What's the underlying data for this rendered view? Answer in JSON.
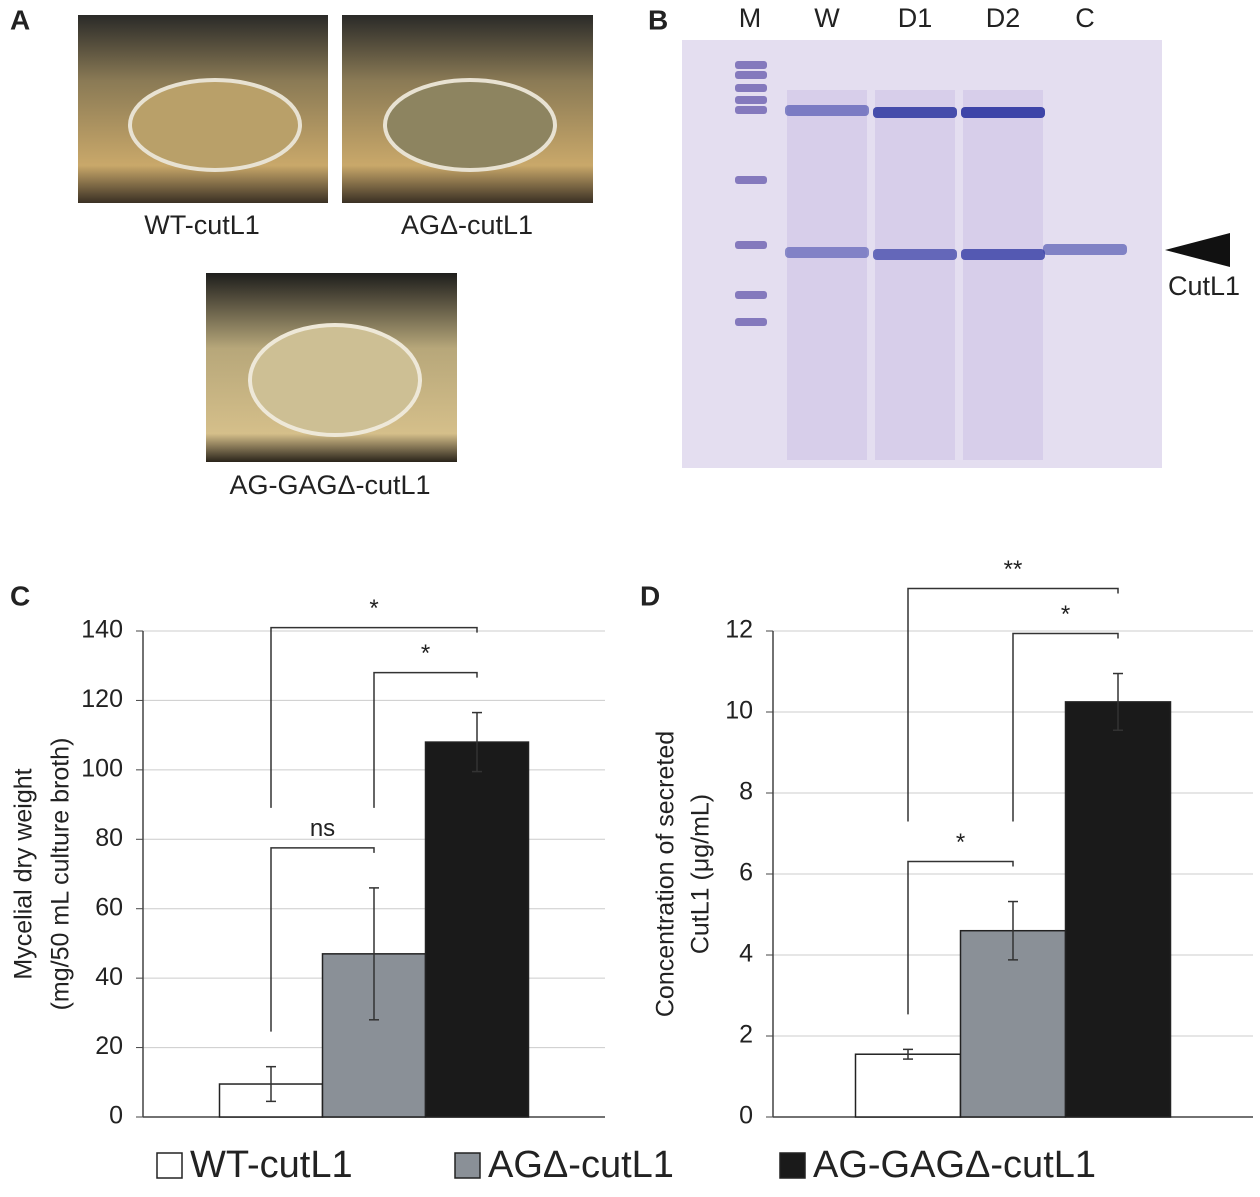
{
  "panel_a": {
    "label": "A",
    "captions": [
      "WT-cutL1",
      "AGΔ-cutL1",
      "AG-GAGΔ-cutL1"
    ]
  },
  "panel_b": {
    "label": "B",
    "lanes": [
      "M",
      "W",
      "D1",
      "D2",
      "C"
    ],
    "arrow_label": "CutL1"
  },
  "chart_data": [
    {
      "type": "bar",
      "panel_label": "C",
      "ylabel": [
        "Mycelial dry weight",
        "(mg/50 mL culture broth)"
      ],
      "categories": [
        "WT-cutL1",
        "AGΔ-cutL1",
        "AG-GAGΔ-cutL1"
      ],
      "values": [
        9.5,
        47,
        108
      ],
      "errors": [
        5,
        19,
        8.5
      ],
      "colors": [
        "#ffffff",
        "#8a9097",
        "#1a1a1a"
      ],
      "ylim": [
        0,
        140
      ],
      "yticks": [
        0,
        20,
        40,
        60,
        80,
        100,
        120,
        140
      ],
      "grid": true,
      "significance": [
        {
          "from": 0,
          "to": 1,
          "label": "ns"
        },
        {
          "from": 1,
          "to": 2,
          "label": "*"
        },
        {
          "from": 0,
          "to": 2,
          "label": "*"
        }
      ]
    },
    {
      "type": "bar",
      "panel_label": "D",
      "ylabel": [
        "Concentration of secreted",
        "CutL1 (μg/mL)"
      ],
      "categories": [
        "WT-cutL1",
        "AGΔ-cutL1",
        "AG-GAGΔ-cutL1"
      ],
      "values": [
        1.55,
        4.6,
        10.25
      ],
      "errors": [
        0.12,
        0.72,
        0.7
      ],
      "colors": [
        "#ffffff",
        "#8a9097",
        "#1a1a1a"
      ],
      "ylim": [
        0,
        12
      ],
      "yticks": [
        0,
        2,
        4,
        6,
        8,
        10,
        12
      ],
      "grid": true,
      "significance": [
        {
          "from": 0,
          "to": 1,
          "label": "*"
        },
        {
          "from": 1,
          "to": 2,
          "label": "*"
        },
        {
          "from": 0,
          "to": 2,
          "label": "**"
        }
      ]
    }
  ]
}
